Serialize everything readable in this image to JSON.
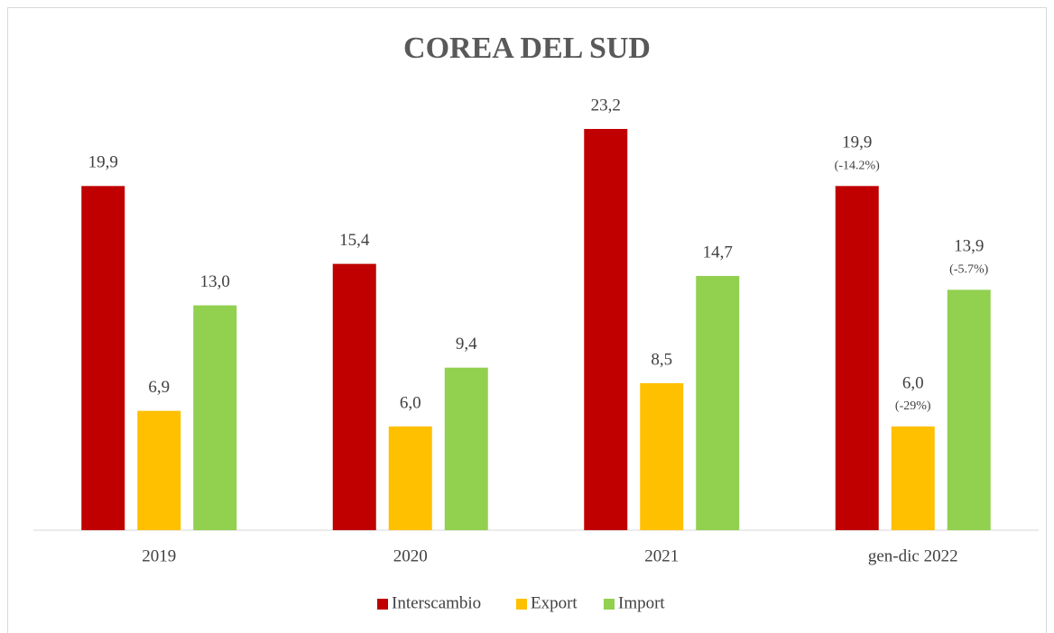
{
  "chart_data": {
    "type": "bar",
    "title": "COREA DEL SUD",
    "categories": [
      "2019",
      "2020",
      "2021",
      "gen-dic 2022"
    ],
    "series": [
      {
        "name": "Interscambio",
        "color": "#c00000",
        "values": [
          19.9,
          15.4,
          23.2,
          19.9
        ],
        "value_labels": [
          "19,9",
          "15,4",
          "23,2",
          "19,9"
        ],
        "notes": [
          null,
          null,
          null,
          "(-14.2%)"
        ]
      },
      {
        "name": "Export",
        "color": "#ffc000",
        "values": [
          6.9,
          6.0,
          8.5,
          6.0
        ],
        "value_labels": [
          "6,9",
          "6,0",
          "8,5",
          "6,0"
        ],
        "notes": [
          null,
          null,
          null,
          "(-29%)"
        ]
      },
      {
        "name": "Import",
        "color": "#92d050",
        "values": [
          13.0,
          9.4,
          14.7,
          13.9
        ],
        "value_labels": [
          "13,0",
          "9,4",
          "14,7",
          "13,9"
        ],
        "notes": [
          null,
          null,
          null,
          "(-5.7%)"
        ]
      }
    ],
    "legend": "bottom"
  }
}
